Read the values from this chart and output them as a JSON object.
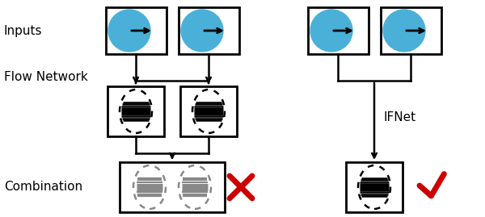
{
  "bg_color": "#ffffff",
  "label_inputs": "Inputs",
  "label_flow": "Flow Network",
  "label_combination": "Combination",
  "label_ifnet": "IFNet",
  "blue_color": "#4ab0d8",
  "black": "#000000",
  "red": "#cc0000",
  "gray": "#888888",
  "fig_w": 6.0,
  "fig_h": 2.69,
  "dpi": 100
}
